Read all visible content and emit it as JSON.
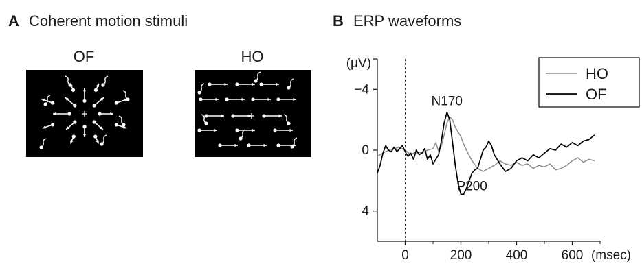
{
  "panels": {
    "a": {
      "letter": "A",
      "title": "Coherent motion stimuli",
      "stimuli": [
        {
          "label": "OF",
          "pattern": "radial expansion dots with arrows, center fixation cross"
        },
        {
          "label": "HO",
          "pattern": "horizontal rightward dot arrows, center fixation cross"
        }
      ]
    },
    "b": {
      "letter": "B",
      "title": "ERP waveforms"
    }
  },
  "colors": {
    "background": "#ffffff",
    "stimulus_bg": "#000000",
    "stimulus_fg": "#ffffff",
    "series_HO": "#8c8c8c",
    "series_OF": "#000000"
  },
  "chart_data": {
    "type": "line",
    "title": "ERP waveforms",
    "xlabel": "(msec)",
    "ylabel": "(μV)",
    "xlim": [
      -100,
      700
    ],
    "ylim": [
      -6,
      6
    ],
    "y_inverted": true,
    "x_ticks": [
      0,
      200,
      400,
      600
    ],
    "y_ticks": [
      -4,
      0,
      4
    ],
    "y_tick_labels": [
      "−4",
      "0",
      "4"
    ],
    "stimulus_onset_line": 0,
    "legend_position": "top-right",
    "annotations": [
      {
        "text": "N170",
        "x": 150,
        "y": -2.6
      },
      {
        "text": "P200",
        "x": 240,
        "y": 3.0
      }
    ],
    "series": [
      {
        "name": "HO",
        "color": "#8c8c8c",
        "x": [
          -100,
          -80,
          -60,
          -40,
          -20,
          0,
          20,
          40,
          60,
          80,
          100,
          110,
          120,
          130,
          140,
          150,
          160,
          170,
          180,
          190,
          200,
          210,
          220,
          240,
          260,
          280,
          300,
          320,
          340,
          360,
          380,
          400,
          420,
          440,
          460,
          480,
          500,
          520,
          540,
          560,
          580,
          600,
          620,
          640,
          660,
          680
        ],
        "y": [
          0.4,
          0.2,
          0.0,
          -0.1,
          -0.2,
          0.0,
          0.3,
          0.1,
          0.2,
          0.0,
          -0.1,
          -0.5,
          0.1,
          -0.3,
          -1.0,
          -1.8,
          -2.2,
          -2.0,
          -1.5,
          -1.2,
          -0.9,
          -0.4,
          0.0,
          0.7,
          1.2,
          1.4,
          1.2,
          1.0,
          0.7,
          0.9,
          1.0,
          0.8,
          1.0,
          0.9,
          1.2,
          1.0,
          1.1,
          0.9,
          1.3,
          1.2,
          1.0,
          0.7,
          0.5,
          0.8,
          0.6,
          0.7
        ]
      },
      {
        "name": "OF",
        "color": "#000000",
        "x": [
          -100,
          -90,
          -80,
          -70,
          -60,
          -50,
          -40,
          -30,
          -20,
          -10,
          0,
          10,
          20,
          30,
          40,
          50,
          60,
          70,
          80,
          90,
          100,
          110,
          120,
          130,
          140,
          150,
          160,
          170,
          180,
          190,
          200,
          210,
          220,
          230,
          240,
          250,
          260,
          270,
          280,
          290,
          300,
          310,
          320,
          340,
          360,
          380,
          400,
          420,
          440,
          460,
          480,
          500,
          520,
          540,
          560,
          580,
          600,
          620,
          640,
          660,
          680
        ],
        "y": [
          1.5,
          1.0,
          0.2,
          -0.3,
          0.0,
          0.1,
          -0.2,
          0.1,
          -0.1,
          -0.3,
          0.1,
          0.4,
          0.2,
          0.6,
          0.0,
          0.3,
          0.2,
          -0.1,
          0.6,
          0.3,
          0.9,
          0.6,
          0.3,
          -0.6,
          -1.8,
          -2.5,
          -2.0,
          -0.5,
          1.0,
          2.2,
          2.9,
          2.9,
          2.5,
          2.0,
          1.5,
          1.3,
          1.2,
          0.6,
          0.0,
          -0.2,
          -0.6,
          -0.3,
          0.3,
          0.9,
          1.4,
          1.2,
          0.7,
          0.5,
          0.7,
          0.3,
          0.5,
          0.2,
          -0.1,
          0.0,
          -0.4,
          -0.2,
          -0.5,
          -0.3,
          -0.6,
          -0.7,
          -1.0
        ]
      }
    ]
  }
}
